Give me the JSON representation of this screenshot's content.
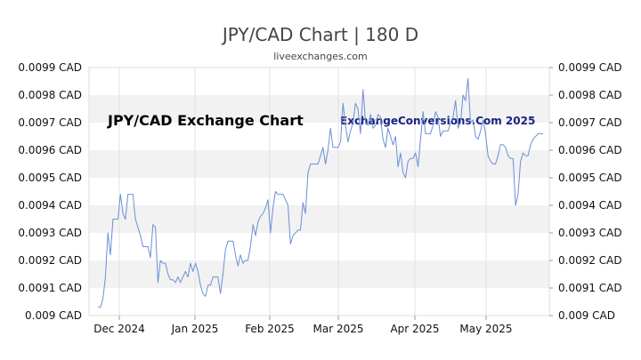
{
  "chart_data": {
    "type": "line",
    "title": "JPY/CAD Chart | 180 D",
    "subtitle": "liveexchanges.com",
    "inner_label": "JPY/CAD Exchange Chart",
    "watermark": "ExchangeConversions.Com 2025",
    "xlabel": "",
    "ylabel": "",
    "ylim": [
      0.009,
      0.0099
    ],
    "yticks": [
      "0.009 CAD",
      "0.0091 CAD",
      "0.0092 CAD",
      "0.0093 CAD",
      "0.0094 CAD",
      "0.0095 CAD",
      "0.0096 CAD",
      "0.0097 CAD",
      "0.0098 CAD",
      "0.0099 CAD"
    ],
    "xticks": [
      "Dec 2024",
      "Jan 2025",
      "Feb 2025",
      "Mar 2025",
      "Apr 2025",
      "May 2025"
    ],
    "grid": "horizontal bands",
    "line_color": "#6b8fd6",
    "band_color": "#f2f2f2",
    "series": [
      {
        "values": [
          0.00903,
          0.00903,
          0.00906,
          0.00914,
          0.0093,
          0.00922,
          0.00935,
          0.00935,
          0.00935,
          0.00944,
          0.00937,
          0.00935,
          0.00944,
          0.00944,
          0.00944,
          0.00935,
          0.00932,
          0.00929,
          0.00925,
          0.00925,
          0.00925,
          0.00921,
          0.00933,
          0.00932,
          0.00912,
          0.0092,
          0.00919,
          0.00919,
          0.00915,
          0.00913,
          0.00913,
          0.00912,
          0.00914,
          0.00912,
          0.00914,
          0.00916,
          0.00914,
          0.00919,
          0.00916,
          0.00919,
          0.00916,
          0.00911,
          0.00908,
          0.00907,
          0.00911,
          0.00911,
          0.00914,
          0.00914,
          0.00914,
          0.00908,
          0.00915,
          0.00924,
          0.00927,
          0.00927,
          0.00927,
          0.00922,
          0.00918,
          0.00922,
          0.00919,
          0.0092,
          0.0092,
          0.00925,
          0.00933,
          0.00929,
          0.00934,
          0.00936,
          0.00937,
          0.00939,
          0.00942,
          0.0093,
          0.00939,
          0.00945,
          0.00944,
          0.00944,
          0.00944,
          0.00942,
          0.0094,
          0.00926,
          0.00929,
          0.0093,
          0.00931,
          0.00931,
          0.00941,
          0.00937,
          0.00952,
          0.00955,
          0.00955,
          0.00955,
          0.00955,
          0.00958,
          0.00961,
          0.00955,
          0.0096,
          0.00968,
          0.00961,
          0.00961,
          0.00961,
          0.00963,
          0.00977,
          0.00969,
          0.00963,
          0.00967,
          0.0097,
          0.00977,
          0.00975,
          0.00966,
          0.00982,
          0.0097,
          0.00969,
          0.00973,
          0.00968,
          0.00969,
          0.00973,
          0.00972,
          0.00964,
          0.00961,
          0.00968,
          0.00965,
          0.00962,
          0.00965,
          0.00954,
          0.00959,
          0.00952,
          0.0095,
          0.00956,
          0.00957,
          0.00957,
          0.00959,
          0.00954,
          0.00964,
          0.00974,
          0.00966,
          0.00966,
          0.00966,
          0.00969,
          0.00974,
          0.00972,
          0.00965,
          0.00967,
          0.00967,
          0.00967,
          0.0097,
          0.00972,
          0.00978,
          0.00968,
          0.0097,
          0.0098,
          0.00978,
          0.00986,
          0.0097,
          0.00971,
          0.00965,
          0.00964,
          0.00967,
          0.00971,
          0.00966,
          0.00958,
          0.00956,
          0.00955,
          0.00955,
          0.00958,
          0.00962,
          0.00962,
          0.00961,
          0.00958,
          0.00957,
          0.00957,
          0.0094,
          0.00944,
          0.00956,
          0.00959,
          0.00958,
          0.00958,
          0.00962,
          0.00964,
          0.00965,
          0.00966,
          0.00966,
          0.00966
        ]
      }
    ]
  }
}
